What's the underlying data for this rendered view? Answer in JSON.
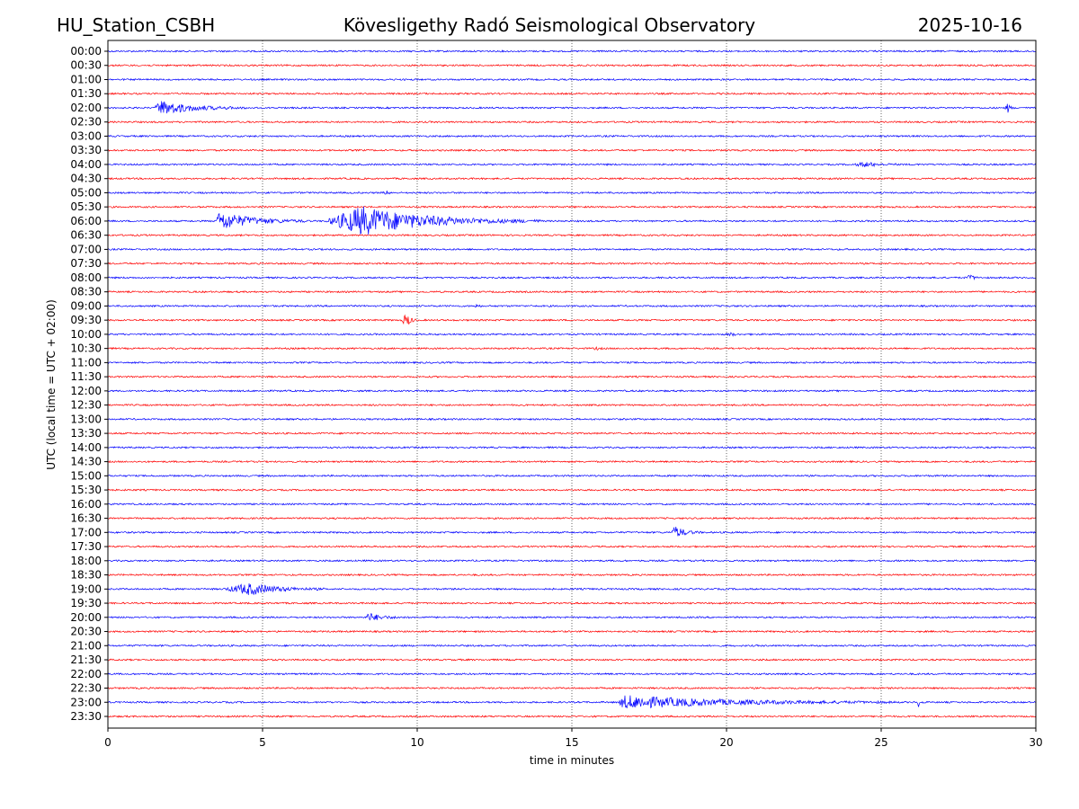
{
  "chart_data": {
    "type": "line",
    "title_left": "HU_Station_CSBH",
    "title": "Kövesligethy Radó Seismological Observatory",
    "title_right": "2025-10-16",
    "xlabel": "time in minutes",
    "ylabel": "UTC (local time = UTC + 02:00)",
    "xlim": [
      0,
      30
    ],
    "xticks": [
      0,
      5,
      10,
      15,
      20,
      25,
      30
    ],
    "grid_x": [
      5,
      10,
      15,
      20,
      25
    ],
    "row_labels": [
      "00:00",
      "00:30",
      "01:00",
      "01:30",
      "02:00",
      "02:30",
      "03:00",
      "03:30",
      "04:00",
      "04:30",
      "05:00",
      "05:30",
      "06:00",
      "06:30",
      "07:00",
      "07:30",
      "08:00",
      "08:30",
      "09:00",
      "09:30",
      "10:00",
      "10:30",
      "11:00",
      "11:30",
      "12:00",
      "12:30",
      "13:00",
      "13:30",
      "14:00",
      "14:30",
      "15:00",
      "15:30",
      "16:00",
      "16:30",
      "17:00",
      "17:30",
      "18:00",
      "18:30",
      "19:00",
      "19:30",
      "20:00",
      "20:30",
      "21:00",
      "21:30",
      "22:00",
      "22:30",
      "23:00",
      "23:30"
    ],
    "series_colors": [
      "#0000ff",
      "#ff0000"
    ],
    "events": [
      {
        "row": "02:00",
        "start_min": 1.5,
        "peak_min": 1.7,
        "end_min": 4.5,
        "amplitude": 0.5
      },
      {
        "row": "02:00",
        "start_min": 29.0,
        "peak_min": 29.1,
        "end_min": 29.3,
        "amplitude": 0.3
      },
      {
        "row": "04:00",
        "start_min": 24.1,
        "peak_min": 24.5,
        "end_min": 25.6,
        "amplitude": 0.15
      },
      {
        "row": "05:00",
        "start_min": 8.9,
        "peak_min": 9.0,
        "end_min": 9.3,
        "amplitude": 0.12
      },
      {
        "row": "06:00",
        "start_min": 3.5,
        "peak_min": 3.6,
        "end_min": 6.5,
        "amplitude": 0.65
      },
      {
        "row": "06:00",
        "start_min": 7.0,
        "peak_min": 8.2,
        "end_min": 14.0,
        "amplitude": 1.0
      },
      {
        "row": "08:00",
        "start_min": 27.7,
        "peak_min": 27.9,
        "end_min": 28.3,
        "amplitude": 0.15
      },
      {
        "row": "09:00",
        "start_min": 11.8,
        "peak_min": 11.9,
        "end_min": 12.2,
        "amplitude": 0.1
      },
      {
        "row": "09:30",
        "start_min": 9.5,
        "peak_min": 9.65,
        "end_min": 10.0,
        "amplitude": 0.5
      },
      {
        "row": "10:00",
        "start_min": 20.0,
        "peak_min": 20.1,
        "end_min": 20.5,
        "amplitude": 0.12
      },
      {
        "row": "10:30",
        "start_min": 15.7,
        "peak_min": 15.8,
        "end_min": 16.0,
        "amplitude": 0.1
      },
      {
        "row": "17:00",
        "start_min": 18.2,
        "peak_min": 18.35,
        "end_min": 19.2,
        "amplitude": 0.4
      },
      {
        "row": "19:00",
        "start_min": 3.7,
        "peak_min": 4.6,
        "end_min": 7.0,
        "amplitude": 0.4
      },
      {
        "row": "20:00",
        "start_min": 8.35,
        "peak_min": 8.4,
        "end_min": 9.6,
        "amplitude": 0.3
      },
      {
        "row": "23:00",
        "start_min": 16.5,
        "peak_min": 16.7,
        "end_min": 25.5,
        "amplitude": 0.45
      },
      {
        "row": "23:00",
        "start_min": 26.15,
        "peak_min": 26.2,
        "end_min": 26.4,
        "amplitude": 0.3
      }
    ]
  }
}
